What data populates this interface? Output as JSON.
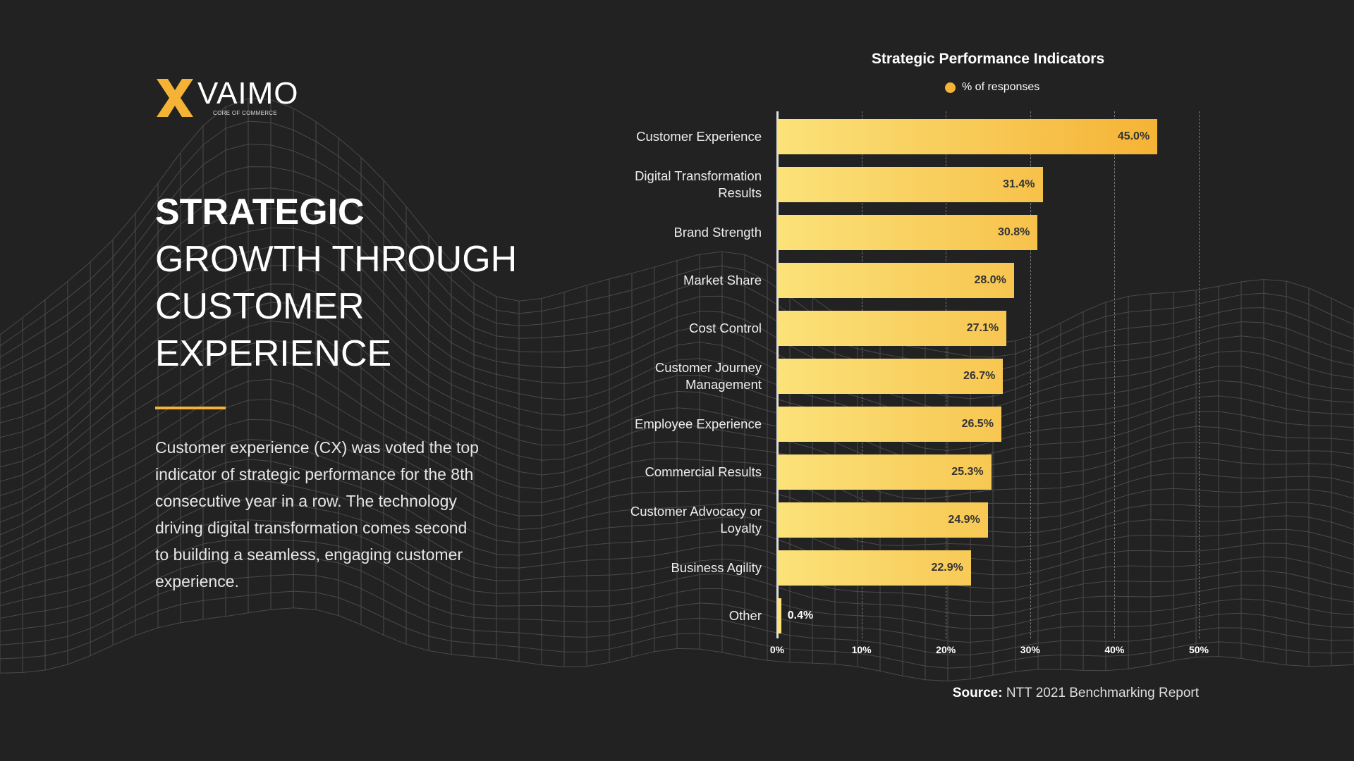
{
  "brand": {
    "name": "VAIMO",
    "tagline": "CORE OF COMMERCE",
    "accent": "#f5b335"
  },
  "headline": {
    "bold": "STRATEGIC",
    "lines": [
      "GROWTH THROUGH",
      "CUSTOMER",
      "EXPERIENCE"
    ]
  },
  "paragraph": "Customer experience (CX) was voted the top indicator of strategic performance for the 8th consecutive year in a row. The technology driving digital transformation comes second to building a seamless, engaging customer experience.",
  "source": {
    "label": "Source:",
    "text": "NTT 2021 Benchmarking Report"
  },
  "chart_data": {
    "type": "bar",
    "orientation": "horizontal",
    "title": "Strategic Performance Indicators",
    "legend": {
      "position": "top",
      "entries": [
        "% of responses"
      ]
    },
    "categories": [
      "Customer Experience",
      "Digital Transformation Results",
      "Brand Strength",
      "Market Share",
      "Cost Control",
      "Customer Journey Management",
      "Employee Experience",
      "Commercial Results",
      "Customer Advocacy or Loyalty",
      "Business Agility",
      "Other"
    ],
    "series": [
      {
        "name": "% of responses",
        "values": [
          45.0,
          31.4,
          30.8,
          28.0,
          27.1,
          26.7,
          26.5,
          25.3,
          24.9,
          22.9,
          0.4
        ]
      }
    ],
    "data_labels": [
      "45.0%",
      "31.4%",
      "30.8%",
      "28.0%",
      "27.1%",
      "26.7%",
      "26.5%",
      "25.3%",
      "24.9%",
      "22.9%",
      "0.4%"
    ],
    "xlim": [
      0,
      50
    ],
    "xticks": [
      "0%",
      "10%",
      "20%",
      "30%",
      "40%",
      "50%"
    ],
    "grid": true,
    "colors": {
      "start": "#fbe27a",
      "end": "#f5b335"
    }
  }
}
